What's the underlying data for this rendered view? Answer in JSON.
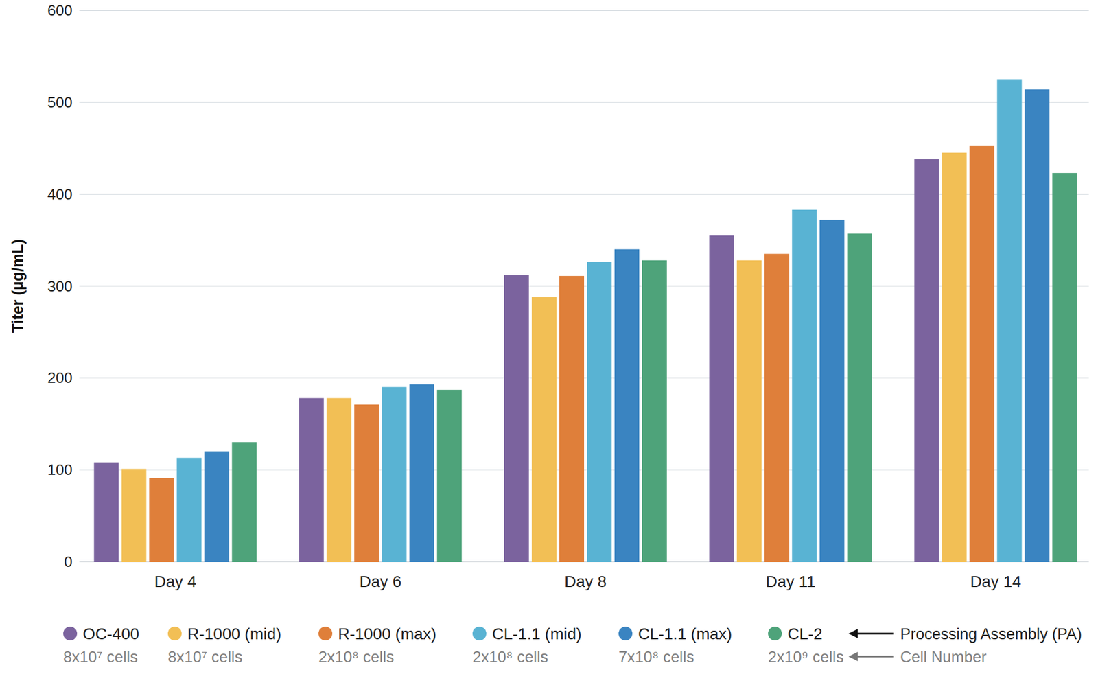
{
  "chart_data": {
    "type": "bar",
    "y_label": "Titer (µg/mL)",
    "categories": [
      "Day 4",
      "Day 6",
      "Day 8",
      "Day 11",
      "Day 14"
    ],
    "series": [
      {
        "name": "OC-400",
        "cell_number": "8x10⁷ cells",
        "color": "#7b639e",
        "values": [
          108,
          178,
          312,
          355,
          438
        ]
      },
      {
        "name": "R-1000 (mid)",
        "cell_number": "8x10⁷ cells",
        "color": "#f2bf55",
        "values": [
          101,
          178,
          288,
          328,
          445
        ]
      },
      {
        "name": "R-1000 (max)",
        "cell_number": "2x10⁸ cells",
        "color": "#df7f3a",
        "values": [
          91,
          171,
          311,
          335,
          453
        ]
      },
      {
        "name": "CL-1.1 (mid)",
        "cell_number": "2x10⁸ cells",
        "color": "#59b3d3",
        "values": [
          113,
          190,
          326,
          383,
          525
        ]
      },
      {
        "name": "CL-1.1 (max)",
        "cell_number": "7x10⁸ cells",
        "color": "#3a84c1",
        "values": [
          120,
          193,
          340,
          372,
          514
        ]
      },
      {
        "name": "CL-2",
        "cell_number": "2x10⁹ cells",
        "color": "#4ea37a",
        "values": [
          130,
          187,
          328,
          357,
          423
        ]
      }
    ],
    "annotations": [
      "Processing Assembly (PA)",
      "Cell Number"
    ],
    "ylim": [
      0,
      600
    ],
    "yticks": [
      0,
      100,
      200,
      300,
      400,
      500,
      600
    ],
    "grid": true,
    "legend": "bottom"
  }
}
